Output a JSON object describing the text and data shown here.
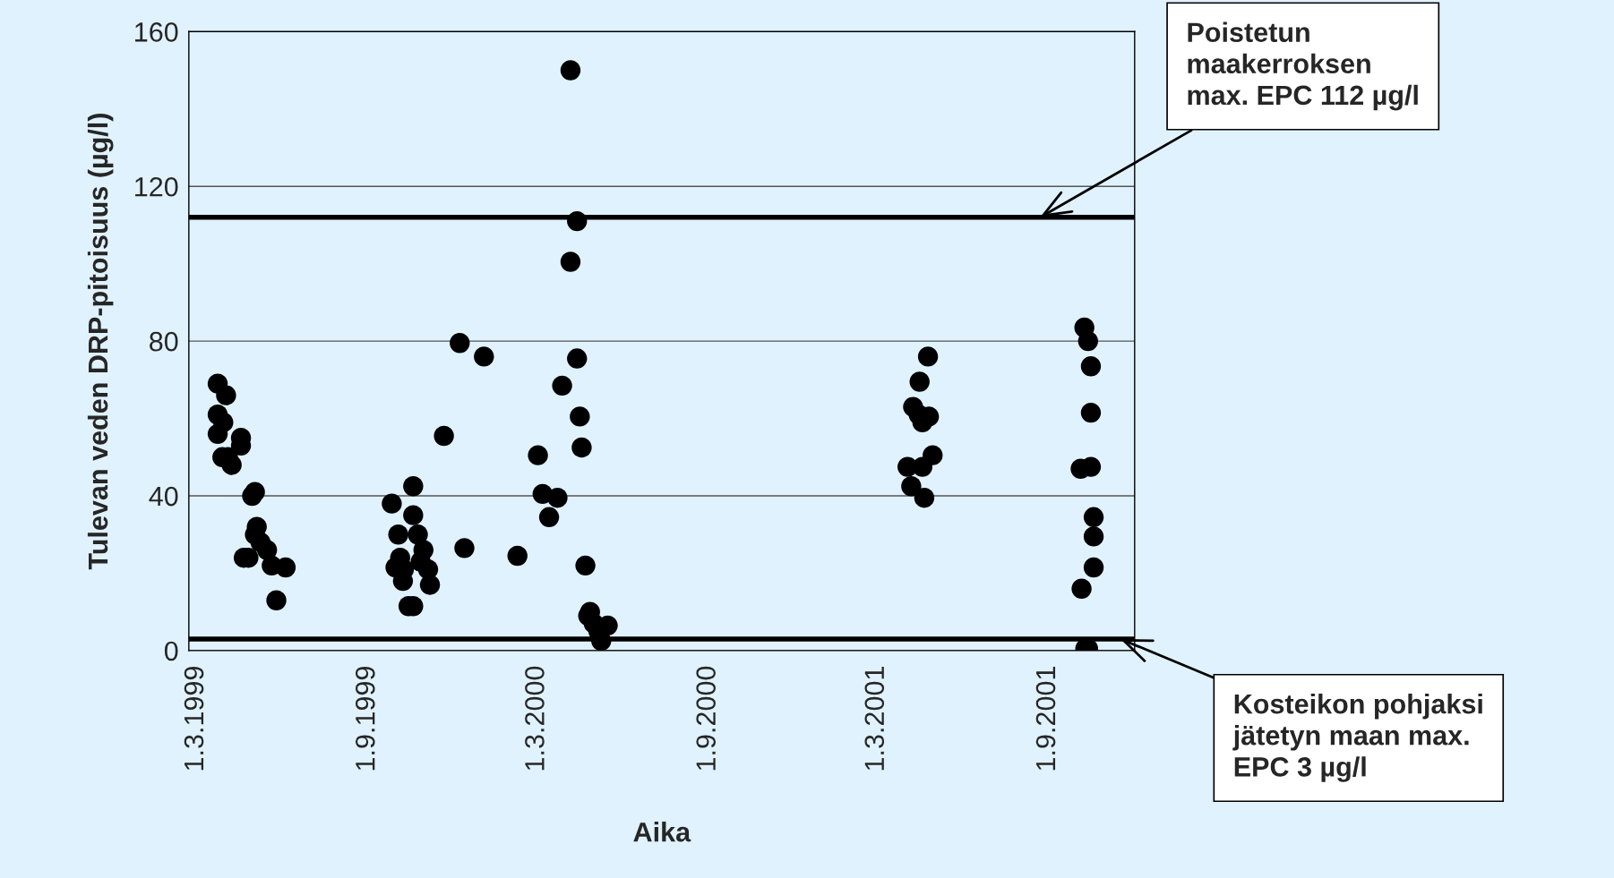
{
  "chart_data": {
    "type": "scatter",
    "xlabel": "Aika",
    "ylabel": "Tulevan veden DRP-pitoisuus (µg/l)",
    "x": [
      "1999-03-24",
      "1999-04-02",
      "1999-03-24",
      "1999-03-30",
      "1999-03-24",
      "1999-03-29",
      "1999-04-04",
      "1999-04-08",
      "1999-04-18",
      "1999-04-18",
      "1999-04-30",
      "1999-05-03",
      "1999-05-05",
      "1999-05-03",
      "1999-05-09",
      "1999-04-21",
      "1999-04-26",
      "1999-05-16",
      "1999-05-21",
      "1999-06-05",
      "1999-05-26",
      "1999-09-27",
      "1999-10-04",
      "1999-10-06",
      "1999-10-01",
      "1999-10-10",
      "1999-10-09",
      "1999-10-15",
      "1999-10-20",
      "1999-10-20",
      "1999-10-20",
      "1999-10-25",
      "1999-10-31",
      "1999-10-28",
      "1999-11-05",
      "1999-11-07",
      "1999-11-22",
      "1999-12-09",
      "1999-12-14",
      "2000-01-04",
      "2000-02-09",
      "2000-03-02",
      "2000-03-07",
      "2000-03-14",
      "2000-03-23",
      "2000-03-28",
      "2000-04-06",
      "2000-04-13",
      "2000-04-06",
      "2000-04-13",
      "2000-04-16",
      "2000-04-18",
      "2000-04-22",
      "2000-04-27",
      "2000-04-25",
      "2000-05-01",
      "2000-05-06",
      "2000-05-09",
      "2000-05-16",
      "2001-04-03",
      "2001-04-07",
      "2001-04-09",
      "2001-04-15",
      "2001-04-16",
      "2001-04-19",
      "2001-04-25",
      "2001-04-26",
      "2001-04-30",
      "2001-04-19",
      "2001-04-21",
      "2001-10-10",
      "2001-10-14",
      "2001-10-17",
      "2001-10-17",
      "2001-10-06",
      "2001-10-17",
      "2001-10-20",
      "2001-10-20",
      "2001-10-20",
      "2001-10-07",
      "2001-10-11",
      "2001-10-14"
    ],
    "values": [
      69,
      66,
      61,
      59,
      56,
      50,
      50,
      48,
      55,
      53,
      40,
      41,
      32,
      30,
      28,
      24,
      24,
      26,
      22,
      21.5,
      13,
      38,
      30,
      24,
      21.5,
      21,
      18,
      11.5,
      11.5,
      42.5,
      35,
      30,
      26,
      23,
      21,
      17,
      55.5,
      79.5,
      26.5,
      76,
      24.5,
      50.5,
      40.5,
      34.5,
      39.5,
      68.5,
      150,
      111,
      100.5,
      75.5,
      60.5,
      52.5,
      22,
      10,
      9,
      7,
      5,
      2.5,
      6.5,
      47.5,
      42.5,
      63,
      61,
      69.5,
      59,
      76,
      60.5,
      50.5,
      47.5,
      39.5,
      83.5,
      80,
      73.5,
      61.5,
      47,
      47.5,
      34.5,
      29.5,
      21.5,
      16,
      0.5,
      0.5
    ],
    "color": "#000000",
    "marker": "circle",
    "xlim": [
      "1999-02-21",
      "2001-12-03"
    ],
    "xticks": [
      {
        "value": "1999-03-01",
        "label": "1.3.1999"
      },
      {
        "value": "1999-09-01",
        "label": "1.9.1999"
      },
      {
        "value": "2000-03-01",
        "label": "1.3.2000"
      },
      {
        "value": "2000-09-01",
        "label": "1.9.2000"
      },
      {
        "value": "2001-03-01",
        "label": "1.3.2001"
      },
      {
        "value": "2001-09-01",
        "label": "1.9.2001"
      }
    ],
    "ylim": [
      0,
      160
    ],
    "yticks": [
      0,
      40,
      80,
      120,
      160
    ],
    "grid": "y",
    "ref_lines": [
      {
        "axis": "y",
        "value": 112,
        "label": "Poistetun\nmaakerroksen\nmax. EPC 112 µg/l",
        "color": "#000000"
      },
      {
        "axis": "y",
        "value": 3,
        "label": "Kosteikon pohjaksi\njätetyn maan max.\nEPC 3 µg/l",
        "color": "#000000"
      }
    ]
  }
}
